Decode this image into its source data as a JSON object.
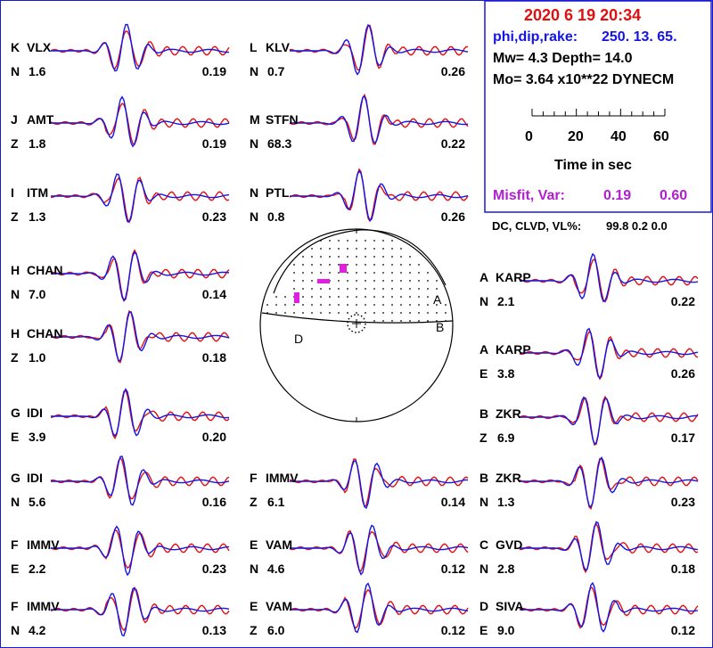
{
  "colors": {
    "observed": "#e01010",
    "synthetic": "#1414e6",
    "frame": "#1a1ad6",
    "header_red": "#e01010",
    "header_blue": "#1414e6",
    "misfit": "#b020d0",
    "beachball_labels": "#e020e0"
  },
  "header": {
    "date": "2020  6 19   20:34",
    "phi_label": "phi,dip,rake:",
    "phi_values": "250. 13.    65.",
    "mw_line": "Mw=  4.3      Depth=     14.0",
    "mo_line": "Mo=  3.64 x10**22 DYNECM",
    "time_axis_ticks": [
      "0",
      "20",
      "40",
      "60"
    ],
    "time_axis_label": "Time  in sec",
    "misfit_label": "Misfit, Var:",
    "misfit_value": "0.19",
    "var_value": "0.60",
    "dc_label": "DC, CLVD, VL%:",
    "dc_values": "99.8    0.2    0.0"
  },
  "chart_data": {
    "type": "line",
    "description_units": "waveform panels: station code, component, weight factor, amplitude ratio",
    "traces": [
      {
        "id": "K",
        "station": "VLX",
        "comp": "N",
        "w": "1.6",
        "ratio": "0.19"
      },
      {
        "id": "J",
        "station": "AMT",
        "comp": "Z",
        "w": "1.8",
        "ratio": "0.19"
      },
      {
        "id": "I",
        "station": "ITM",
        "comp": "Z",
        "w": "1.3",
        "ratio": "0.23"
      },
      {
        "id": "H",
        "station": "CHAN",
        "comp": "N",
        "w": "7.0",
        "ratio": "0.14"
      },
      {
        "id": "H",
        "station": "CHAN",
        "comp": "Z",
        "w": "1.0",
        "ratio": "0.18"
      },
      {
        "id": "G",
        "station": "IDI",
        "comp": "E",
        "w": "3.9",
        "ratio": "0.20"
      },
      {
        "id": "G",
        "station": "IDI",
        "comp": "N",
        "w": "5.6",
        "ratio": "0.16"
      },
      {
        "id": "F",
        "station": "IMMV",
        "comp": "E",
        "w": "2.2",
        "ratio": "0.23"
      },
      {
        "id": "F",
        "station": "IMMV",
        "comp": "N",
        "w": "4.2",
        "ratio": "0.13"
      },
      {
        "id": "L",
        "station": "KLV",
        "comp": "N",
        "w": "0.7",
        "ratio": "0.26"
      },
      {
        "id": "M",
        "station": "STFN",
        "comp": "N",
        "w": "68.3",
        "ratio": "0.22"
      },
      {
        "id": "N",
        "station": "PTL",
        "comp": "N",
        "w": "0.8",
        "ratio": "0.26"
      },
      {
        "id": "F",
        "station": "IMMV",
        "comp": "Z",
        "w": "6.1",
        "ratio": "0.14"
      },
      {
        "id": "E",
        "station": "VAM",
        "comp": "N",
        "w": "4.6",
        "ratio": "0.12"
      },
      {
        "id": "E",
        "station": "VAM",
        "comp": "Z",
        "w": "6.0",
        "ratio": "0.12"
      },
      {
        "id": "A",
        "station": "KARP",
        "comp": "N",
        "w": "2.1",
        "ratio": "0.22"
      },
      {
        "id": "A",
        "station": "KARP",
        "comp": "E",
        "w": "3.8",
        "ratio": "0.26"
      },
      {
        "id": "B",
        "station": "ZKR",
        "comp": "Z",
        "w": "6.9",
        "ratio": "0.17"
      },
      {
        "id": "B",
        "station": "ZKR",
        "comp": "N",
        "w": "1.3",
        "ratio": "0.23"
      },
      {
        "id": "C",
        "station": "GVD",
        "comp": "N",
        "w": "2.8",
        "ratio": "0.18"
      },
      {
        "id": "D",
        "station": "SIVA",
        "comp": "E",
        "w": "9.0",
        "ratio": "0.12"
      }
    ],
    "beachball_station_marks": [
      "A",
      "B",
      "D"
    ]
  }
}
